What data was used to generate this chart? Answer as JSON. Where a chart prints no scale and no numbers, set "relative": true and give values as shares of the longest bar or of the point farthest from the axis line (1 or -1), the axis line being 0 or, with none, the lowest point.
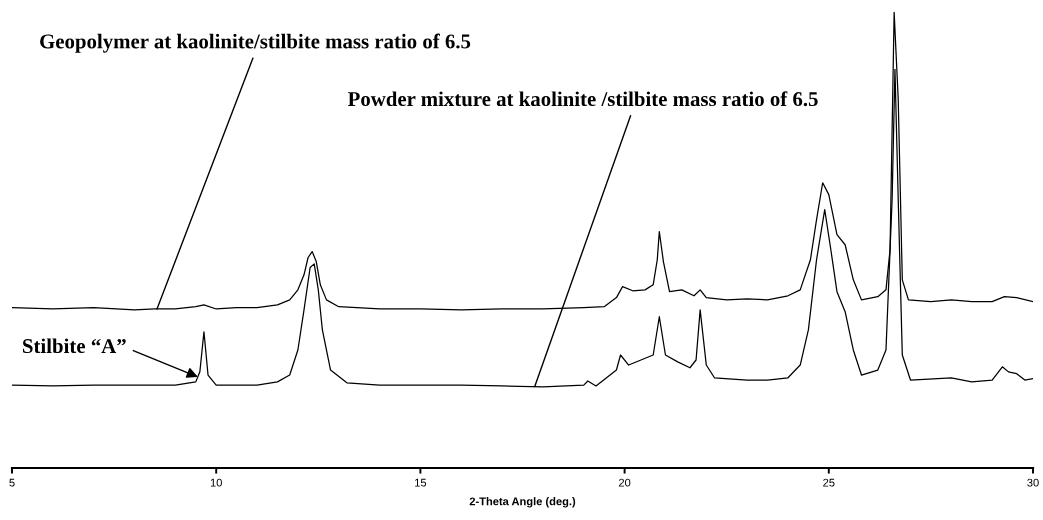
{
  "chart_data": {
    "type": "line",
    "relative": true,
    "xlabel": "2-Theta Angle (deg.)",
    "xlim": [
      5,
      30
    ],
    "xticks": [
      5,
      10,
      15,
      20,
      25,
      30
    ],
    "grid": false,
    "legend": false,
    "marker": "none",
    "line_style": "solid",
    "series": [
      {
        "color": "#000000",
        "x": [
          5.0,
          6,
          7,
          8,
          8.5,
          9,
          9.5,
          9.7,
          10,
          10.5,
          11,
          11.5,
          11.8,
          12.0,
          12.15,
          12.25,
          12.35,
          12.45,
          12.55,
          12.7,
          13,
          14,
          15,
          16,
          17,
          18,
          19,
          19.5,
          19.8,
          19.95,
          20.2,
          20.5,
          20.7,
          20.8,
          20.85,
          20.95,
          21.1,
          21.4,
          21.7,
          21.85,
          22,
          22.5,
          23,
          23.5,
          24,
          24.3,
          24.55,
          24.7,
          24.85,
          25.0,
          25.2,
          25.4,
          25.6,
          25.8,
          26.2,
          26.4,
          26.5,
          26.6,
          26.7,
          26.8,
          26.95,
          27.5,
          28,
          28.5,
          29,
          29.3,
          29.6,
          30
        ],
        "values": [
          0.352,
          0.349,
          0.352,
          0.347,
          0.349,
          0.349,
          0.354,
          0.358,
          0.349,
          0.352,
          0.352,
          0.358,
          0.369,
          0.391,
          0.424,
          0.462,
          0.475,
          0.453,
          0.402,
          0.369,
          0.354,
          0.349,
          0.349,
          0.347,
          0.349,
          0.349,
          0.352,
          0.354,
          0.374,
          0.398,
          0.389,
          0.391,
          0.402,
          0.457,
          0.519,
          0.453,
          0.387,
          0.391,
          0.378,
          0.391,
          0.374,
          0.369,
          0.371,
          0.369,
          0.378,
          0.391,
          0.457,
          0.545,
          0.626,
          0.6,
          0.512,
          0.49,
          0.413,
          0.369,
          0.376,
          0.391,
          0.479,
          1.0,
          0.809,
          0.413,
          0.369,
          0.365,
          0.369,
          0.365,
          0.365,
          0.376,
          0.374,
          0.365
        ]
      },
      {
        "color": "#000000",
        "x": [
          5.0,
          6,
          7,
          8,
          9,
          9.5,
          9.6,
          9.7,
          9.8,
          10,
          10.5,
          11,
          11.5,
          11.8,
          12.0,
          12.15,
          12.3,
          12.4,
          12.5,
          12.6,
          12.8,
          13.2,
          14,
          15,
          16,
          17,
          18,
          19,
          19.1,
          19.3,
          19.8,
          19.9,
          20.1,
          20.4,
          20.7,
          20.85,
          21.0,
          21.3,
          21.6,
          21.75,
          21.85,
          22.0,
          22.2,
          23,
          23.5,
          24,
          24.3,
          24.5,
          24.7,
          24.9,
          25.05,
          25.2,
          25.4,
          25.6,
          25.8,
          26.2,
          26.4,
          26.55,
          26.62,
          26.7,
          26.8,
          27,
          28,
          28.5,
          29,
          29.25,
          29.4,
          29.6,
          29.8,
          30
        ],
        "values": [
          0.182,
          0.18,
          0.182,
          0.182,
          0.182,
          0.189,
          0.211,
          0.299,
          0.204,
          0.182,
          0.182,
          0.182,
          0.189,
          0.204,
          0.259,
          0.347,
          0.44,
          0.448,
          0.391,
          0.303,
          0.215,
          0.187,
          0.182,
          0.182,
          0.182,
          0.18,
          0.178,
          0.182,
          0.191,
          0.18,
          0.215,
          0.248,
          0.226,
          0.237,
          0.248,
          0.332,
          0.248,
          0.233,
          0.22,
          0.237,
          0.347,
          0.226,
          0.198,
          0.193,
          0.193,
          0.198,
          0.226,
          0.303,
          0.457,
          0.567,
          0.479,
          0.387,
          0.343,
          0.259,
          0.204,
          0.215,
          0.259,
          0.589,
          0.875,
          0.589,
          0.248,
          0.193,
          0.198,
          0.189,
          0.193,
          0.222,
          0.211,
          0.207,
          0.193,
          0.196
        ]
      }
    ],
    "annotations": [
      {
        "text": "Geopolymer at kaolinite/stilbite mass ratio of 6.5",
        "x": 8.55,
        "y": 0.349
      },
      {
        "text": "Powder mixture at kaolinite /stilbite mass ratio of 6.5",
        "x": 17.8,
        "y": 0.179
      },
      {
        "text": "Stilbite “A”",
        "x": 9.55,
        "y": 0.2
      }
    ]
  }
}
